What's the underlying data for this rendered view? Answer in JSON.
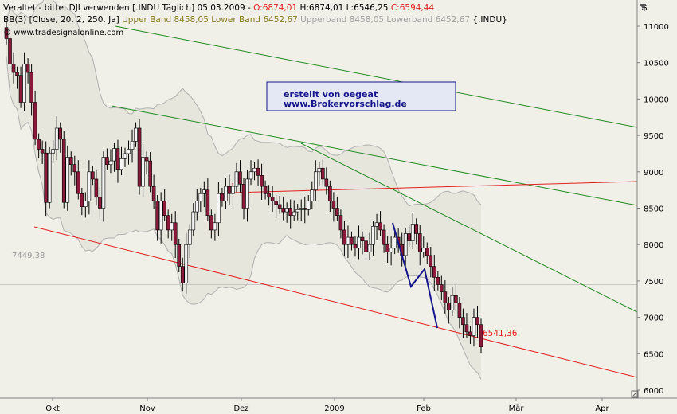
{
  "header": {
    "line1": {
      "prefix": "Veraltet - bitte .DJI verwenden [.INDU  Täglich] 05.03.2009 - ",
      "ohlc": "O:6874,01",
      "h": " H:6874,01",
      "l": " L:6546,25",
      "c": " C:6594,44"
    },
    "line2": {
      "indicator": "BB(3) [Close, 20, 2, 250, Ja]",
      "upper_band": " Upper Band 8458,05",
      "lower_band": " Lower Band 6452,67",
      "legacy": " Upperband 8458,05 Lowerband 6452,67",
      "symbol": " {.INDU}"
    },
    "source": "© www.tradesignalonline.com"
  },
  "watermark": {
    "line1": "erstellt von oegeat",
    "line2": "www.Brokervorschlag.de"
  },
  "colors": {
    "background": "#f0f0e8",
    "up_candle": "#f5f5f5",
    "down_candle": "#8b1a3a",
    "support_line": "#e02020",
    "trend_line": "#208a20",
    "pattern_line": "#14148c",
    "band": "#b0b0b0"
  },
  "chart_data": {
    "type": "candlestick",
    "currency_label": "$",
    "y_ticks": [
      6000,
      6500,
      7000,
      7500,
      8000,
      8500,
      9000,
      9500,
      10000,
      10500,
      11000
    ],
    "ylim": [
      6000,
      11200
    ],
    "x_labels": [
      "Okt",
      "Nov",
      "Dez",
      "2009",
      "Feb",
      "Mär",
      "Apr"
    ],
    "reference_levels": [
      {
        "label": "7449,38",
        "value": 7449.38
      },
      {
        "label": "6541,36",
        "value": 6541.36
      }
    ],
    "candles_close": [
      10831,
      10482,
      10365,
      10325,
      9955,
      10482,
      10365,
      9955,
      9447,
      9310,
      9258,
      8579,
      9258,
      9310,
      9600,
      9447,
      8579,
      9200,
      9100,
      9000,
      8700,
      8520,
      8600,
      9000,
      8900,
      8650,
      8500,
      9200,
      9100,
      9150,
      9320,
      9033,
      9180,
      9250,
      9310,
      9420,
      9600,
      8800,
      9200,
      9150,
      8800,
      8600,
      8200,
      8600,
      8400,
      8200,
      8300,
      8000,
      7700,
      7470,
      8000,
      8200,
      8450,
      8600,
      8700,
      8750,
      8400,
      8200,
      8300,
      8700,
      8600,
      8800,
      8700,
      8800,
      9000,
      8830,
      8500,
      8900,
      9000,
      9050,
      8950,
      8800,
      8700,
      8650,
      8600,
      8550,
      8500,
      8450,
      8500,
      8400,
      8450,
      8480,
      8500,
      8480,
      8600,
      8750,
      9000,
      9050,
      8900,
      8800,
      8600,
      8500,
      8400,
      8200,
      8000,
      8100,
      8000,
      7950,
      8100,
      8050,
      7900,
      8000,
      8250,
      8300,
      8200,
      8000,
      7900,
      7950,
      8100,
      8000,
      7850,
      8150,
      8050,
      8280,
      8150,
      7900,
      7950,
      7850,
      7700,
      7550,
      7450,
      7350,
      7200,
      7100,
      7300,
      7200,
      7000,
      6900,
      6800,
      6750,
      7000,
      6900,
      6594
    ],
    "trend_lines": [
      {
        "color": "green",
        "from": [
          "start",
          11000
        ],
        "to": [
          "end",
          9250
        ]
      },
      {
        "color": "green",
        "from": [
          "Nov-peak",
          9650
        ],
        "to": [
          "end",
          8150
        ]
      },
      {
        "color": "green",
        "from": [
          "Jan-peak",
          9050
        ],
        "to": [
          "end",
          6800
        ]
      },
      {
        "color": "red",
        "from": [
          "Okt-low",
          7900
        ],
        "to": [
          "end",
          6100
        ]
      },
      {
        "color": "red",
        "from": [
          "Dez",
          8350
        ],
        "to": [
          "end",
          8500
        ]
      }
    ]
  }
}
